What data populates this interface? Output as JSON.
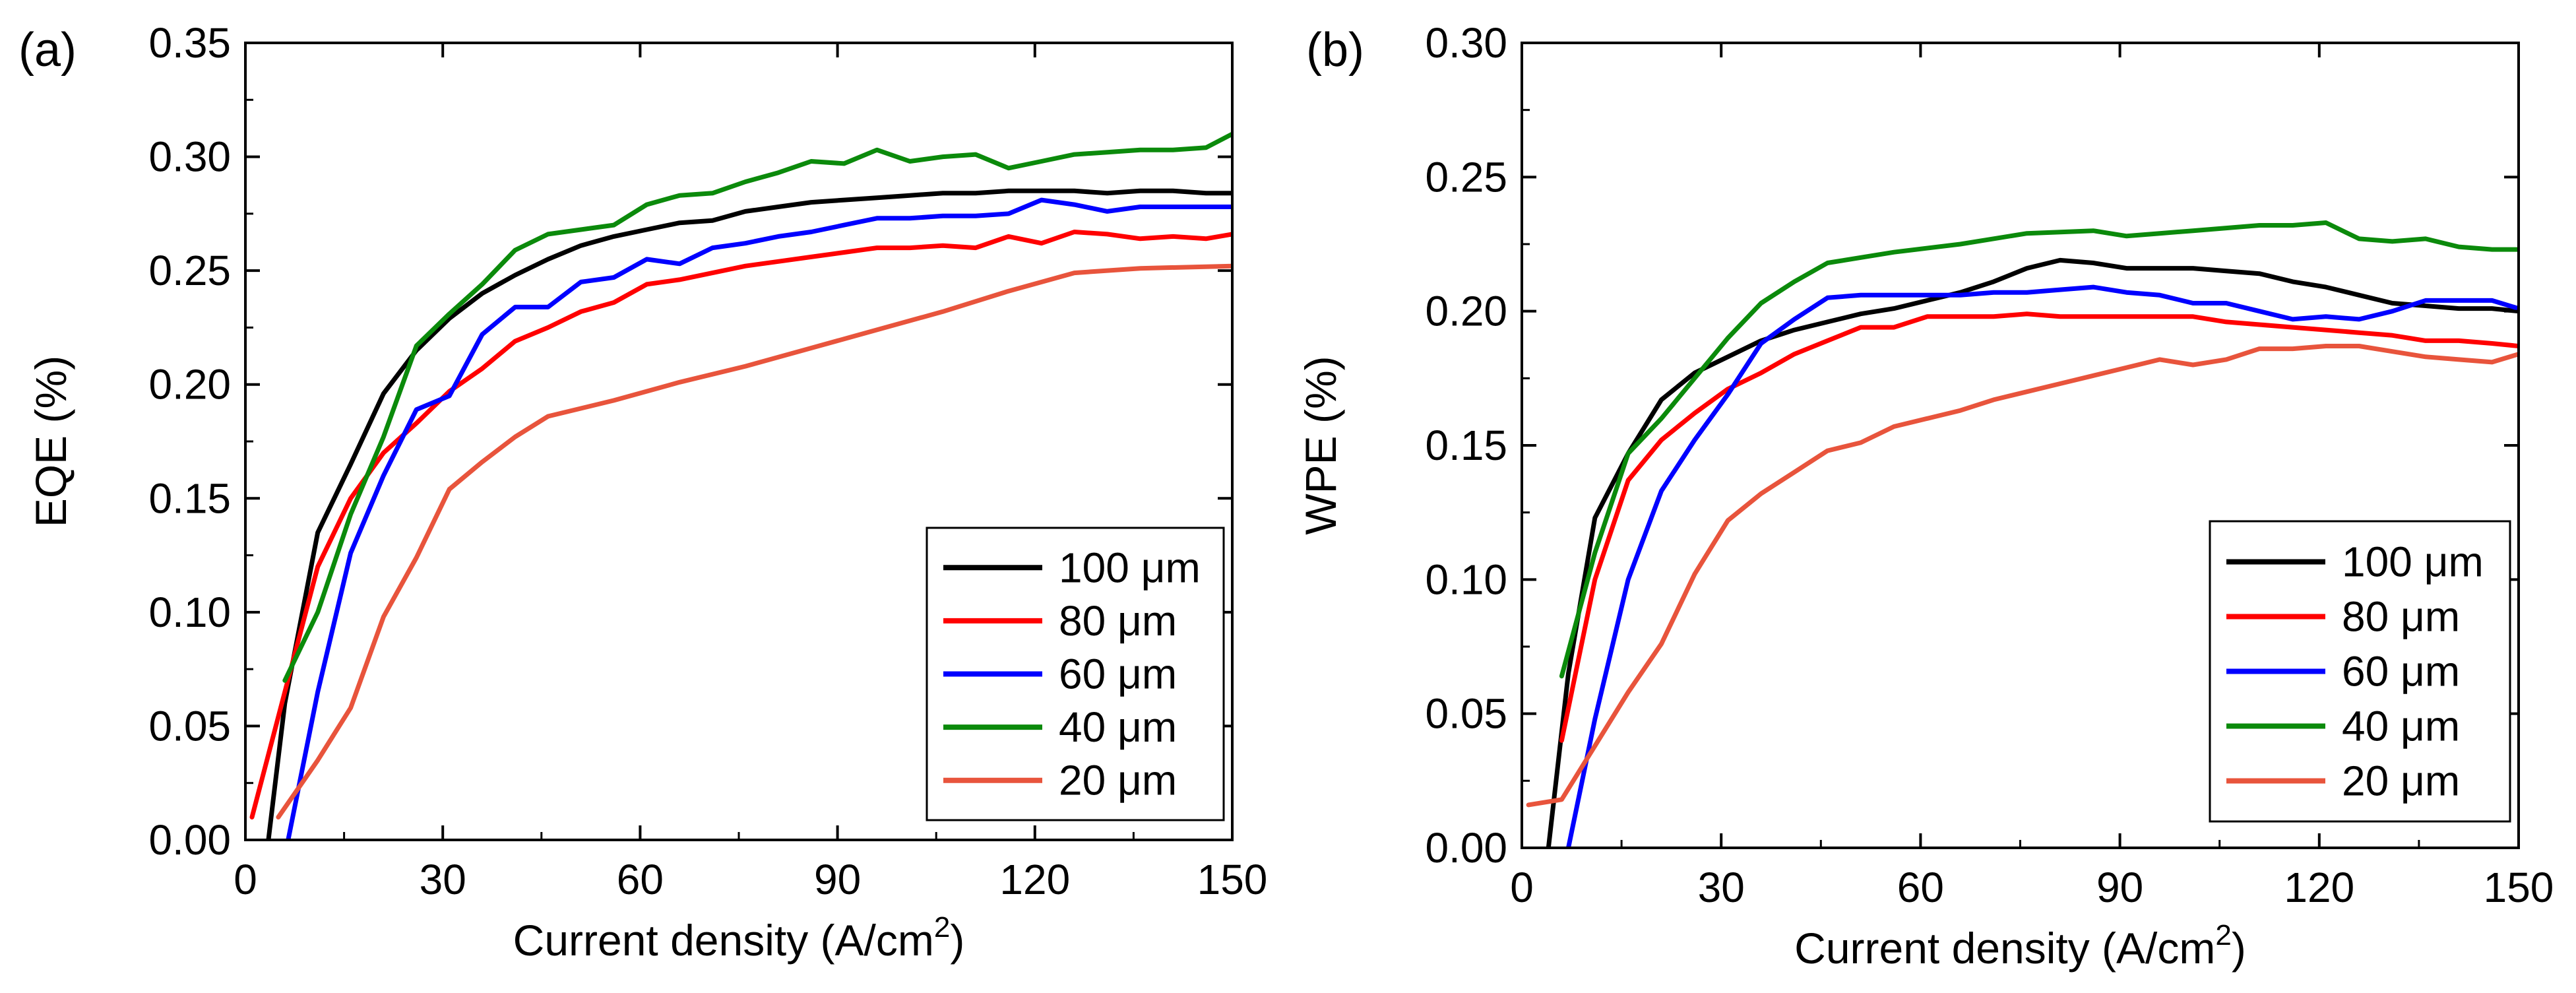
{
  "chart_data": [
    {
      "type": "line",
      "panel_label": "(a)",
      "ylabel": "EQE (%)",
      "xlabel_main": "Current density (A/cm",
      "xlabel_sup": "2",
      "xlabel_close": ")",
      "xlim": [
        0,
        150
      ],
      "ylim": [
        0,
        0.35
      ],
      "xticks": [
        0,
        30,
        60,
        90,
        120,
        150
      ],
      "yticks": [
        0.0,
        0.05,
        0.1,
        0.15,
        0.2,
        0.25,
        0.3,
        0.35
      ],
      "xtick_labels": [
        "0",
        "30",
        "60",
        "90",
        "120",
        "150"
      ],
      "ytick_labels": [
        "0.00",
        "0.05",
        "0.10",
        "0.15",
        "0.20",
        "0.25",
        "0.30",
        "0.35"
      ],
      "legend_position": "bottom-right",
      "series": [
        {
          "name": "100 μm",
          "color": "#000000",
          "x": [
            3.5,
            6,
            11,
            16,
            21,
            26,
            31,
            36,
            41,
            46,
            51,
            56,
            61,
            66,
            71,
            76,
            81,
            86,
            91,
            96,
            101,
            106,
            111,
            116,
            121,
            126,
            131,
            136,
            141,
            146,
            150
          ],
          "y": [
            0.0,
            0.06,
            0.135,
            0.165,
            0.196,
            0.215,
            0.229,
            0.24,
            0.248,
            0.255,
            0.261,
            0.265,
            0.268,
            0.271,
            0.272,
            0.276,
            0.278,
            0.28,
            0.281,
            0.282,
            0.283,
            0.284,
            0.284,
            0.285,
            0.285,
            0.285,
            0.284,
            0.285,
            0.285,
            0.284,
            0.284
          ]
        },
        {
          "name": "80 μm",
          "color": "#ff0000",
          "x": [
            1,
            6,
            11,
            16,
            21,
            26,
            31,
            36,
            41,
            46,
            51,
            56,
            61,
            66,
            71,
            76,
            81,
            86,
            91,
            96,
            101,
            106,
            111,
            116,
            121,
            126,
            131,
            136,
            141,
            146,
            150
          ],
          "y": [
            0.01,
            0.065,
            0.12,
            0.15,
            0.17,
            0.183,
            0.197,
            0.207,
            0.219,
            0.225,
            0.232,
            0.236,
            0.244,
            0.246,
            0.249,
            0.252,
            0.254,
            0.256,
            0.258,
            0.26,
            0.26,
            0.261,
            0.26,
            0.265,
            0.262,
            0.267,
            0.266,
            0.264,
            0.265,
            0.264,
            0.266
          ]
        },
        {
          "name": "60 μm",
          "color": "#0000ff",
          "x": [
            6.5,
            11,
            16,
            21,
            26,
            31,
            36,
            41,
            46,
            51,
            56,
            61,
            66,
            71,
            76,
            81,
            86,
            91,
            96,
            101,
            106,
            111,
            116,
            121,
            126,
            131,
            136,
            141,
            146,
            150
          ],
          "y": [
            0.0,
            0.065,
            0.126,
            0.16,
            0.189,
            0.195,
            0.222,
            0.234,
            0.234,
            0.245,
            0.247,
            0.255,
            0.253,
            0.26,
            0.262,
            0.265,
            0.267,
            0.27,
            0.273,
            0.273,
            0.274,
            0.274,
            0.275,
            0.281,
            0.279,
            0.276,
            0.278,
            0.278,
            0.278,
            0.278
          ]
        },
        {
          "name": "40 μm",
          "color": "#0b8a0b",
          "x": [
            6,
            11,
            16,
            21,
            26,
            31,
            36,
            41,
            46,
            51,
            56,
            61,
            66,
            71,
            76,
            81,
            86,
            91,
            96,
            101,
            106,
            111,
            116,
            121,
            126,
            131,
            136,
            141,
            146,
            150
          ],
          "y": [
            0.07,
            0.1,
            0.143,
            0.177,
            0.217,
            0.231,
            0.244,
            0.259,
            0.266,
            0.268,
            0.27,
            0.279,
            0.283,
            0.284,
            0.289,
            0.293,
            0.298,
            0.297,
            0.303,
            0.298,
            0.3,
            0.301,
            0.295,
            0.298,
            0.301,
            0.302,
            0.303,
            0.303,
            0.304,
            0.31
          ]
        },
        {
          "name": "20 μm",
          "color": "#e8543c",
          "x": [
            5,
            11,
            16,
            21,
            26,
            31,
            36,
            41,
            46,
            56,
            66,
            76,
            86,
            96,
            106,
            116,
            126,
            136,
            150
          ],
          "y": [
            0.01,
            0.035,
            0.058,
            0.098,
            0.124,
            0.154,
            0.166,
            0.177,
            0.186,
            0.193,
            0.201,
            0.208,
            0.216,
            0.224,
            0.232,
            0.241,
            0.249,
            0.251,
            0.252
          ]
        }
      ]
    },
    {
      "type": "line",
      "panel_label": "(b)",
      "ylabel": "WPE (%)",
      "xlabel_main": "Current density (A/cm",
      "xlabel_sup": "2",
      "xlabel_close": ")",
      "xlim": [
        0,
        150
      ],
      "ylim": [
        0,
        0.3
      ],
      "xticks": [
        0,
        30,
        60,
        90,
        120,
        150
      ],
      "yticks": [
        0.0,
        0.05,
        0.1,
        0.15,
        0.2,
        0.25,
        0.3
      ],
      "xtick_labels": [
        "0",
        "30",
        "60",
        "90",
        "120",
        "150"
      ],
      "ytick_labels": [
        "0.00",
        "0.05",
        "0.10",
        "0.15",
        "0.20",
        "0.25",
        "0.30"
      ],
      "legend_position": "bottom-right",
      "series": [
        {
          "name": "100 μm",
          "color": "#000000",
          "x": [
            4,
            7,
            11,
            16,
            21,
            26,
            31,
            36,
            41,
            46,
            51,
            56,
            61,
            66,
            71,
            76,
            81,
            86,
            91,
            96,
            101,
            106,
            111,
            116,
            121,
            126,
            131,
            136,
            141,
            146,
            150
          ],
          "y": [
            0.0,
            0.065,
            0.123,
            0.147,
            0.167,
            0.177,
            0.183,
            0.189,
            0.193,
            0.196,
            0.199,
            0.201,
            0.204,
            0.207,
            0.211,
            0.216,
            0.219,
            0.218,
            0.216,
            0.216,
            0.216,
            0.215,
            0.214,
            0.211,
            0.209,
            0.206,
            0.203,
            0.202,
            0.201,
            0.201,
            0.2
          ]
        },
        {
          "name": "80 μm",
          "color": "#ff0000",
          "x": [
            6,
            11,
            16,
            21,
            26,
            31,
            36,
            41,
            46,
            51,
            56,
            61,
            66,
            71,
            76,
            81,
            86,
            91,
            96,
            101,
            106,
            111,
            116,
            121,
            126,
            131,
            136,
            141,
            146,
            150
          ],
          "y": [
            0.04,
            0.1,
            0.137,
            0.152,
            0.162,
            0.171,
            0.177,
            0.184,
            0.189,
            0.194,
            0.194,
            0.198,
            0.198,
            0.198,
            0.199,
            0.198,
            0.198,
            0.198,
            0.198,
            0.198,
            0.196,
            0.195,
            0.194,
            0.193,
            0.192,
            0.191,
            0.189,
            0.189,
            0.188,
            0.187
          ]
        },
        {
          "name": "60 μm",
          "color": "#0000ff",
          "x": [
            7,
            11,
            16,
            21,
            26,
            31,
            36,
            41,
            46,
            51,
            56,
            61,
            66,
            71,
            76,
            81,
            86,
            91,
            96,
            101,
            106,
            111,
            116,
            121,
            126,
            131,
            136,
            141,
            146,
            150
          ],
          "y": [
            0.0,
            0.048,
            0.1,
            0.133,
            0.152,
            0.169,
            0.188,
            0.197,
            0.205,
            0.206,
            0.206,
            0.206,
            0.206,
            0.207,
            0.207,
            0.208,
            0.209,
            0.207,
            0.206,
            0.203,
            0.203,
            0.2,
            0.197,
            0.198,
            0.197,
            0.2,
            0.204,
            0.204,
            0.204,
            0.201
          ]
        },
        {
          "name": "40 μm",
          "color": "#0b8a0b",
          "x": [
            6,
            11,
            16,
            21,
            26,
            31,
            36,
            41,
            46,
            56,
            66,
            76,
            86,
            91,
            96,
            101,
            106,
            111,
            116,
            121,
            126,
            131,
            136,
            141,
            146,
            150
          ],
          "y": [
            0.064,
            0.11,
            0.147,
            0.16,
            0.175,
            0.19,
            0.203,
            0.211,
            0.218,
            0.222,
            0.225,
            0.229,
            0.23,
            0.228,
            0.229,
            0.23,
            0.231,
            0.232,
            0.232,
            0.233,
            0.227,
            0.226,
            0.227,
            0.224,
            0.223,
            0.223
          ]
        },
        {
          "name": "20 μm",
          "color": "#e8543c",
          "x": [
            1,
            6,
            11,
            16,
            21,
            26,
            31,
            36,
            41,
            46,
            51,
            56,
            61,
            66,
            71,
            76,
            81,
            86,
            91,
            96,
            101,
            106,
            111,
            116,
            121,
            126,
            131,
            136,
            141,
            146,
            150
          ],
          "y": [
            0.016,
            0.018,
            0.038,
            0.058,
            0.076,
            0.102,
            0.122,
            0.132,
            0.14,
            0.148,
            0.151,
            0.157,
            0.16,
            0.163,
            0.167,
            0.17,
            0.173,
            0.176,
            0.179,
            0.182,
            0.18,
            0.182,
            0.186,
            0.186,
            0.187,
            0.187,
            0.185,
            0.183,
            0.182,
            0.181,
            0.184
          ]
        }
      ]
    }
  ]
}
